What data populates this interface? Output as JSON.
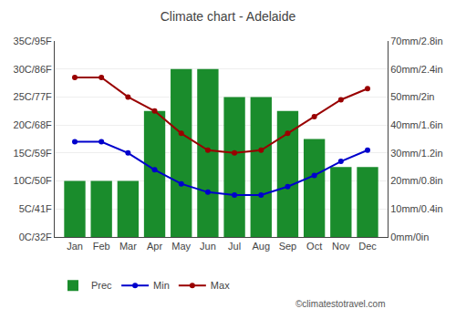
{
  "chart_data": {
    "type": "bar",
    "title": "Climate chart - Adelaide",
    "categories": [
      "Jan",
      "Feb",
      "Mar",
      "Apr",
      "May",
      "Jun",
      "Jul",
      "Aug",
      "Sep",
      "Oct",
      "Nov",
      "Dec"
    ],
    "series": [
      {
        "name": "Prec",
        "type": "bar",
        "axis": "y2",
        "color": "#1a8c2c",
        "values": [
          20,
          20,
          20,
          45,
          60,
          60,
          50,
          50,
          45,
          35,
          25,
          25
        ]
      },
      {
        "name": "Min",
        "type": "line",
        "marker": "circle",
        "color": "#0000cc",
        "values": [
          17,
          17,
          15,
          12,
          9.5,
          8,
          7.5,
          7.5,
          9,
          11,
          13.5,
          15.5
        ]
      },
      {
        "name": "Max",
        "type": "line",
        "marker": "circle",
        "color": "#990000",
        "values": [
          28.5,
          28.5,
          25,
          22.5,
          18.5,
          15.5,
          15,
          15.5,
          18.5,
          21.5,
          24.5,
          26.5
        ]
      }
    ],
    "ylim": [
      0,
      35
    ],
    "yticks": [
      {
        "value": 0,
        "label": "0C/32F"
      },
      {
        "value": 5,
        "label": "5C/41F"
      },
      {
        "value": 10,
        "label": "10C/50F"
      },
      {
        "value": 15,
        "label": "15C/59F"
      },
      {
        "value": 20,
        "label": "20C/68F"
      },
      {
        "value": 25,
        "label": "25C/77F"
      },
      {
        "value": 30,
        "label": "30C/86F"
      },
      {
        "value": 35,
        "label": "35C/95F"
      }
    ],
    "y2lim": [
      0,
      70
    ],
    "y2ticks": [
      {
        "value": 0,
        "label": "0mm/0in"
      },
      {
        "value": 10,
        "label": "10mm/0.4in"
      },
      {
        "value": 20,
        "label": "20mm/0.8in"
      },
      {
        "value": 30,
        "label": "30mm/1.2in"
      },
      {
        "value": 40,
        "label": "40mm/1.6in"
      },
      {
        "value": 50,
        "label": "50mm/2in"
      },
      {
        "value": 60,
        "label": "60mm/2.4in"
      },
      {
        "value": 70,
        "label": "70mm/2.8in"
      }
    ],
    "grid": true,
    "legend": "bottom",
    "annotations": [
      "©climatestotravel.com"
    ]
  }
}
